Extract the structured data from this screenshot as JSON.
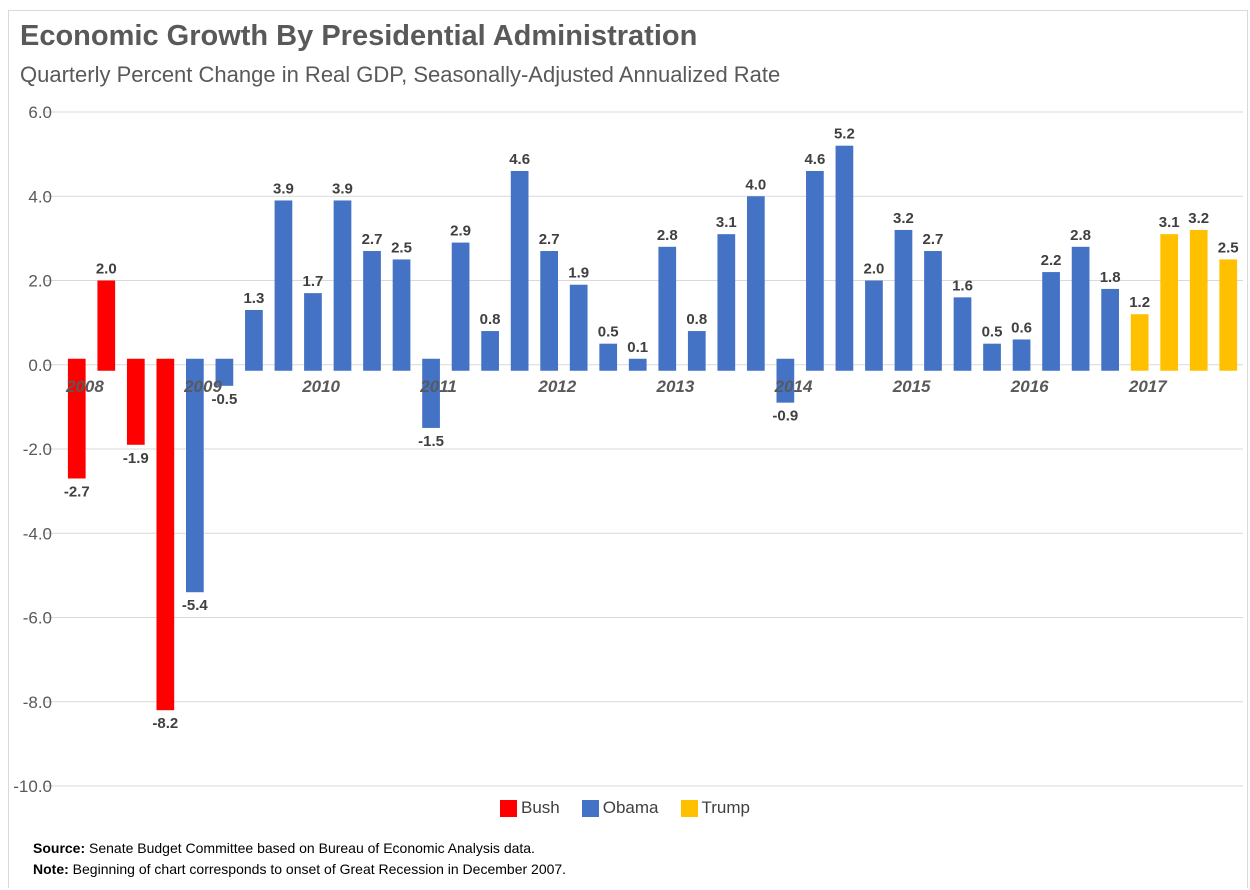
{
  "chart_data": {
    "type": "bar",
    "title": "Economic Growth By Presidential Administration",
    "subtitle": "Quarterly Percent Change in Real GDP, Seasonally-Adjusted Annualized Rate",
    "ylim": [
      -10,
      6
    ],
    "yticks": [
      "6.0",
      "4.0",
      "2.0",
      "0.0",
      "-2.0",
      "-4.0",
      "-6.0",
      "-8.0",
      "-10.0"
    ],
    "ytick_values": [
      6,
      4,
      2,
      0,
      -2,
      -4,
      -6,
      -8,
      -10
    ],
    "grid": true,
    "legend_position": "bottom",
    "year_labels": [
      {
        "label": "2008",
        "quarter_index": 0
      },
      {
        "label": "2009",
        "quarter_index": 4
      },
      {
        "label": "2010",
        "quarter_index": 8
      },
      {
        "label": "2011",
        "quarter_index": 12
      },
      {
        "label": "2012",
        "quarter_index": 16
      },
      {
        "label": "2013",
        "quarter_index": 20
      },
      {
        "label": "2014",
        "quarter_index": 24
      },
      {
        "label": "2015",
        "quarter_index": 28
      },
      {
        "label": "2016",
        "quarter_index": 32
      },
      {
        "label": "2017",
        "quarter_index": 36
      }
    ],
    "series": [
      {
        "name": "Bush",
        "color": "#ff0000"
      },
      {
        "name": "Obama",
        "color": "#4472c4"
      },
      {
        "name": "Trump",
        "color": "#ffc000"
      }
    ],
    "bars": [
      {
        "value": -2.7,
        "series": "Bush"
      },
      {
        "value": 2.0,
        "series": "Bush"
      },
      {
        "value": -1.9,
        "series": "Bush"
      },
      {
        "value": -8.2,
        "series": "Bush"
      },
      {
        "value": -5.4,
        "series": "Obama"
      },
      {
        "value": -0.5,
        "series": "Obama"
      },
      {
        "value": 1.3,
        "series": "Obama"
      },
      {
        "value": 3.9,
        "series": "Obama"
      },
      {
        "value": 1.7,
        "series": "Obama"
      },
      {
        "value": 3.9,
        "series": "Obama"
      },
      {
        "value": 2.7,
        "series": "Obama"
      },
      {
        "value": 2.5,
        "series": "Obama"
      },
      {
        "value": -1.5,
        "series": "Obama"
      },
      {
        "value": 2.9,
        "series": "Obama"
      },
      {
        "value": 0.8,
        "series": "Obama"
      },
      {
        "value": 4.6,
        "series": "Obama"
      },
      {
        "value": 2.7,
        "series": "Obama"
      },
      {
        "value": 1.9,
        "series": "Obama"
      },
      {
        "value": 0.5,
        "series": "Obama"
      },
      {
        "value": 0.1,
        "series": "Obama"
      },
      {
        "value": 2.8,
        "series": "Obama"
      },
      {
        "value": 0.8,
        "series": "Obama"
      },
      {
        "value": 3.1,
        "series": "Obama"
      },
      {
        "value": 4.0,
        "series": "Obama"
      },
      {
        "value": -0.9,
        "series": "Obama"
      },
      {
        "value": 4.6,
        "series": "Obama"
      },
      {
        "value": 5.2,
        "series": "Obama"
      },
      {
        "value": 2.0,
        "series": "Obama"
      },
      {
        "value": 3.2,
        "series": "Obama"
      },
      {
        "value": 2.7,
        "series": "Obama"
      },
      {
        "value": 1.6,
        "series": "Obama"
      },
      {
        "value": 0.5,
        "series": "Obama"
      },
      {
        "value": 0.6,
        "series": "Obama"
      },
      {
        "value": 2.2,
        "series": "Obama"
      },
      {
        "value": 2.8,
        "series": "Obama"
      },
      {
        "value": 1.8,
        "series": "Obama"
      },
      {
        "value": 1.2,
        "series": "Trump"
      },
      {
        "value": 3.1,
        "series": "Trump"
      },
      {
        "value": 3.2,
        "series": "Trump"
      },
      {
        "value": 2.5,
        "series": "Trump"
      }
    ]
  },
  "footnotes": {
    "source_label": "Source:",
    "source_text": " Senate Budget Committee based on Bureau of Economic Analysis data.",
    "note_label": "Note:",
    "note_text": " Beginning of chart corresponds to onset of Great Recession in December 2007."
  }
}
